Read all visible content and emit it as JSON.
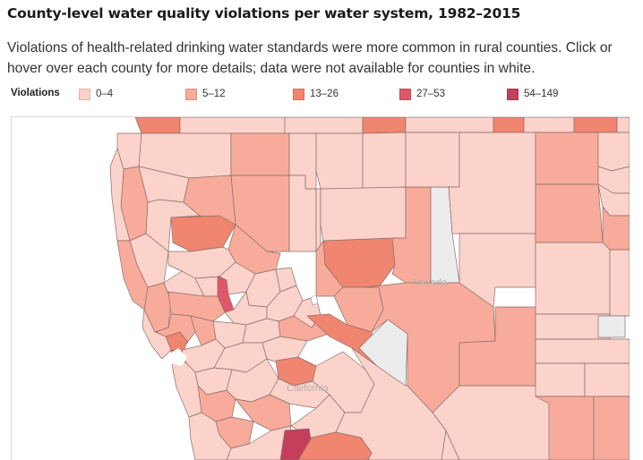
{
  "title": "County-level water quality violations per water system, 1982–2015",
  "subtitle": "Violations of health-related drinking water standards were more common in rural counties. Click or hover over each county for more details; data were not available for counties in white.",
  "legend": {
    "title": "Violations",
    "items": [
      {
        "label": "0–4",
        "color": "#fbd3ca"
      },
      {
        "label": "5–12",
        "color": "#f8ab9a"
      },
      {
        "label": "13–26",
        "color": "#f08570"
      },
      {
        "label": "27–53",
        "color": "#e0576a"
      },
      {
        "label": "54–149",
        "color": "#c53f5c"
      }
    ]
  },
  "map": {
    "no_data_color": "#ececec",
    "water_color": "#ffffff",
    "labels": {
      "nevada": "Nevada",
      "california": "California"
    }
  }
}
